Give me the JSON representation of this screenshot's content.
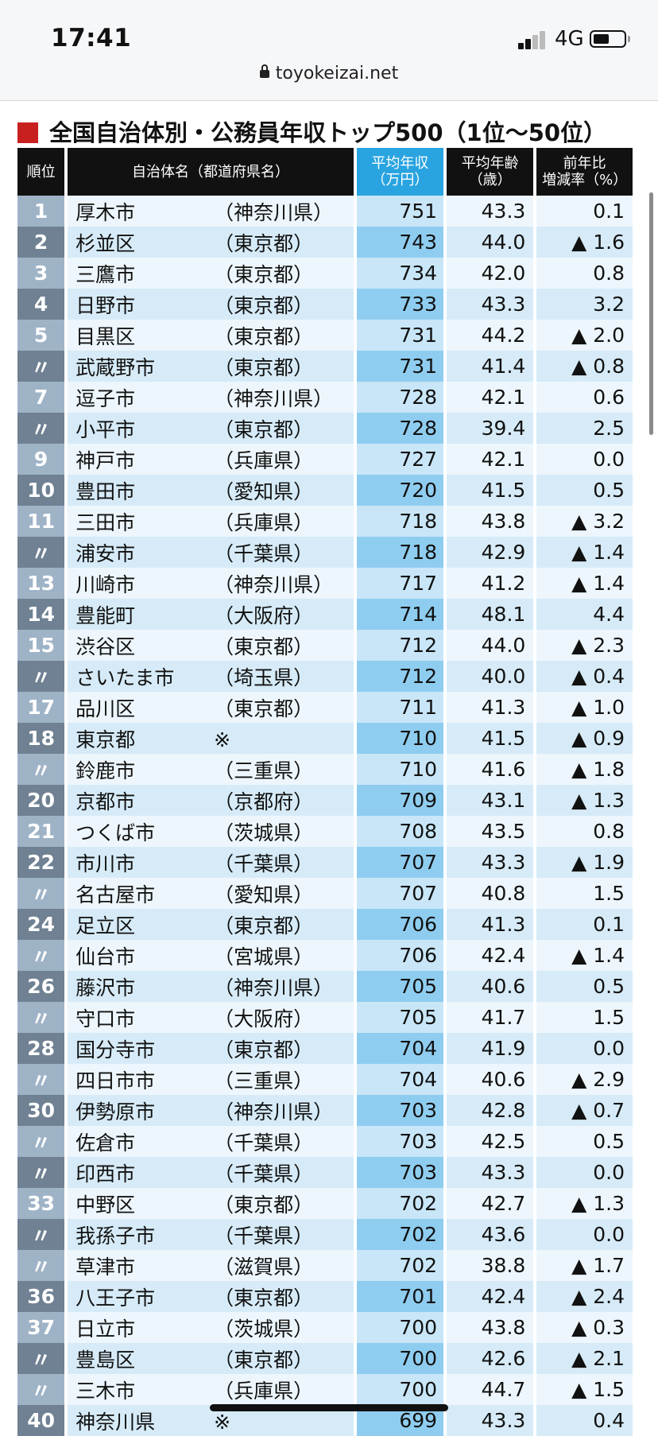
{
  "status_bar": {
    "time": "17:41",
    "network": "4G"
  },
  "browser": {
    "url": "toyokeizai.net"
  },
  "heading": "全国自治体別・公務員年収トップ500（1位〜50位）",
  "table": {
    "headers": {
      "rank": "順位",
      "name": "自治体名（都道府県名）",
      "income_1": "平均年収",
      "income_2": "（万円）",
      "age_1": "平均年齢",
      "age_2": "（歳）",
      "change_1": "前年比",
      "change_2": "増減率（%）"
    },
    "rows": [
      {
        "rank": "1",
        "name": "厚木市",
        "pref": "（神奈川県）",
        "income": "751",
        "age": "43.3",
        "change": "0.1"
      },
      {
        "rank": "2",
        "name": "杉並区",
        "pref": "（東京都）",
        "income": "743",
        "age": "44.0",
        "change": "▲ 1.6"
      },
      {
        "rank": "3",
        "name": "三鷹市",
        "pref": "（東京都）",
        "income": "734",
        "age": "42.0",
        "change": "0.8"
      },
      {
        "rank": "4",
        "name": "日野市",
        "pref": "（東京都）",
        "income": "733",
        "age": "43.3",
        "change": "3.2"
      },
      {
        "rank": "5",
        "name": "目黒区",
        "pref": "（東京都）",
        "income": "731",
        "age": "44.2",
        "change": "▲ 2.0"
      },
      {
        "rank": "〃",
        "name": "武蔵野市",
        "pref": "（東京都）",
        "income": "731",
        "age": "41.4",
        "change": "▲ 0.8"
      },
      {
        "rank": "7",
        "name": "逗子市",
        "pref": "（神奈川県）",
        "income": "728",
        "age": "42.1",
        "change": "0.6"
      },
      {
        "rank": "〃",
        "name": "小平市",
        "pref": "（東京都）",
        "income": "728",
        "age": "39.4",
        "change": "2.5"
      },
      {
        "rank": "9",
        "name": "神戸市",
        "pref": "（兵庫県）",
        "income": "727",
        "age": "42.1",
        "change": "0.0"
      },
      {
        "rank": "10",
        "name": "豊田市",
        "pref": "（愛知県）",
        "income": "720",
        "age": "41.5",
        "change": "0.5"
      },
      {
        "rank": "11",
        "name": "三田市",
        "pref": "（兵庫県）",
        "income": "718",
        "age": "43.8",
        "change": "▲ 3.2"
      },
      {
        "rank": "〃",
        "name": "浦安市",
        "pref": "（千葉県）",
        "income": "718",
        "age": "42.9",
        "change": "▲ 1.4"
      },
      {
        "rank": "13",
        "name": "川崎市",
        "pref": "（神奈川県）",
        "income": "717",
        "age": "41.2",
        "change": "▲ 1.4"
      },
      {
        "rank": "14",
        "name": "豊能町",
        "pref": "（大阪府）",
        "income": "714",
        "age": "48.1",
        "change": "4.4"
      },
      {
        "rank": "15",
        "name": "渋谷区",
        "pref": "（東京都）",
        "income": "712",
        "age": "44.0",
        "change": "▲ 2.3"
      },
      {
        "rank": "〃",
        "name": "さいたま市",
        "pref": "（埼玉県）",
        "income": "712",
        "age": "40.0",
        "change": "▲ 0.4"
      },
      {
        "rank": "17",
        "name": "品川区",
        "pref": "（東京都）",
        "income": "711",
        "age": "41.3",
        "change": "▲ 1.0"
      },
      {
        "rank": "18",
        "name": "東京都",
        "pref": "※",
        "income": "710",
        "age": "41.5",
        "change": "▲ 0.9"
      },
      {
        "rank": "〃",
        "name": "鈴鹿市",
        "pref": "（三重県）",
        "income": "710",
        "age": "41.6",
        "change": "▲ 1.8"
      },
      {
        "rank": "20",
        "name": "京都市",
        "pref": "（京都府）",
        "income": "709",
        "age": "43.1",
        "change": "▲ 1.3"
      },
      {
        "rank": "21",
        "name": "つくば市",
        "pref": "（茨城県）",
        "income": "708",
        "age": "43.5",
        "change": "0.8"
      },
      {
        "rank": "22",
        "name": "市川市",
        "pref": "（千葉県）",
        "income": "707",
        "age": "43.3",
        "change": "▲ 1.9"
      },
      {
        "rank": "〃",
        "name": "名古屋市",
        "pref": "（愛知県）",
        "income": "707",
        "age": "40.8",
        "change": "1.5"
      },
      {
        "rank": "24",
        "name": "足立区",
        "pref": "（東京都）",
        "income": "706",
        "age": "41.3",
        "change": "0.1"
      },
      {
        "rank": "〃",
        "name": "仙台市",
        "pref": "（宮城県）",
        "income": "706",
        "age": "42.4",
        "change": "▲ 1.4"
      },
      {
        "rank": "26",
        "name": "藤沢市",
        "pref": "（神奈川県）",
        "income": "705",
        "age": "40.6",
        "change": "0.5"
      },
      {
        "rank": "〃",
        "name": "守口市",
        "pref": "（大阪府）",
        "income": "705",
        "age": "41.7",
        "change": "1.5"
      },
      {
        "rank": "28",
        "name": "国分寺市",
        "pref": "（東京都）",
        "income": "704",
        "age": "41.9",
        "change": "0.0"
      },
      {
        "rank": "〃",
        "name": "四日市市",
        "pref": "（三重県）",
        "income": "704",
        "age": "40.6",
        "change": "▲ 2.9"
      },
      {
        "rank": "30",
        "name": "伊勢原市",
        "pref": "（神奈川県）",
        "income": "703",
        "age": "42.8",
        "change": "▲ 0.7"
      },
      {
        "rank": "〃",
        "name": "佐倉市",
        "pref": "（千葉県）",
        "income": "703",
        "age": "42.5",
        "change": "0.5"
      },
      {
        "rank": "〃",
        "name": "印西市",
        "pref": "（千葉県）",
        "income": "703",
        "age": "43.3",
        "change": "0.0"
      },
      {
        "rank": "33",
        "name": "中野区",
        "pref": "（東京都）",
        "income": "702",
        "age": "42.7",
        "change": "▲ 1.3"
      },
      {
        "rank": "〃",
        "name": "我孫子市",
        "pref": "（千葉県）",
        "income": "702",
        "age": "43.6",
        "change": "0.0"
      },
      {
        "rank": "〃",
        "name": "草津市",
        "pref": "（滋賀県）",
        "income": "702",
        "age": "38.8",
        "change": "▲ 1.7"
      },
      {
        "rank": "36",
        "name": "八王子市",
        "pref": "（東京都）",
        "income": "701",
        "age": "42.4",
        "change": "▲ 2.4"
      },
      {
        "rank": "37",
        "name": "日立市",
        "pref": "（茨城県）",
        "income": "700",
        "age": "43.8",
        "change": "▲ 0.3"
      },
      {
        "rank": "〃",
        "name": "豊島区",
        "pref": "（東京都）",
        "income": "700",
        "age": "42.6",
        "change": "▲ 2.1"
      },
      {
        "rank": "〃",
        "name": "三木市",
        "pref": "（兵庫県）",
        "income": "700",
        "age": "44.7",
        "change": "▲ 1.5"
      },
      {
        "rank": "40",
        "name": "神奈川県",
        "pref": "※",
        "income": "699",
        "age": "43.3",
        "change": "0.4"
      }
    ]
  },
  "colors": {
    "accent_red": "#c8201f",
    "header_black": "#111111",
    "header_blue": "#29a4e0",
    "rank_dark": "#6f8193",
    "rank_light": "#9fb3c7"
  }
}
